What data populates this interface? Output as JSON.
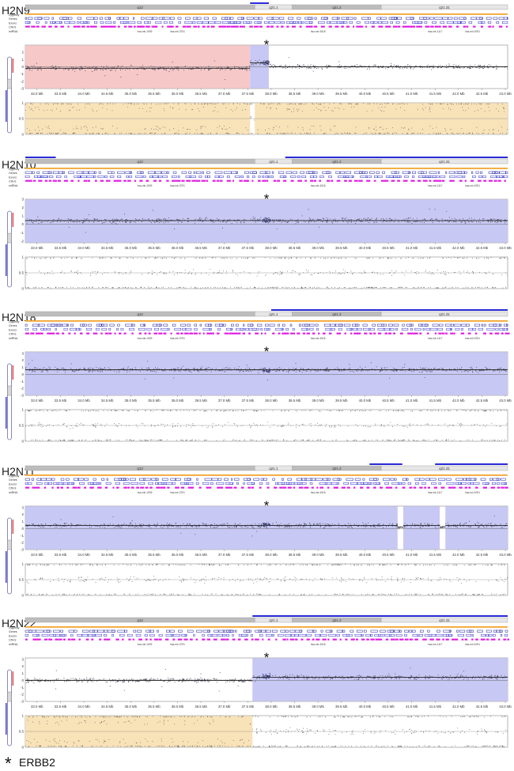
{
  "colors": {
    "gain": "#c8c8f5",
    "loss": "#f6c8c8",
    "loh": "#f8e2b8",
    "cnv": "#e11de1",
    "exon": "#3030c8",
    "gene": "#2020a0",
    "zygosity": "#f3a530",
    "cytoband_dark": "#bdbdbd",
    "cytoband_light": "#e6e6e6",
    "points": "#555566"
  },
  "track_labels": [
    "Zygosity",
    "Genes",
    "Exons",
    "CNVs",
    "miRNA"
  ],
  "cytobands": [
    "q12",
    "q21.1",
    "q21.2",
    "q21.31"
  ],
  "mirna_labels": [
    "hsa-mir-1909",
    "hsa-mir-3791",
    "hsa-mir-4518",
    "hsa-mir-1117",
    "hsa-mir-6781"
  ],
  "chart_data": [
    {
      "type": "scatter",
      "title": "H2N9",
      "x_ticks": [
        "33.0 Mb",
        "33.5 Mb",
        "34.0 Mb",
        "34.5 Mb",
        "35.0 Mb",
        "35.5 Mb",
        "36.0 Mb",
        "36.5 Mb",
        "37.0 Mb",
        "37.5 Mb",
        "38.0 Mb",
        "38.5 Mb",
        "39.0 Mb",
        "39.5 Mb",
        "40.0 Mb",
        "40.5 Mb",
        "41.0 Mb",
        "41.5 Mb",
        "42.0 Mb",
        "42.5 Mb",
        "43.0 Mb"
      ],
      "y_ticks": [
        "2",
        "1",
        "0",
        "-1",
        "-2",
        "-3"
      ],
      "baf_ticks": [
        "1",
        "0.5",
        "0"
      ],
      "xlim": [
        32.75,
        43.05
      ],
      "ylim": [
        -3,
        3
      ],
      "erbb2_mb": 37.9,
      "segments": [
        {
          "start": 32.75,
          "end": 37.55,
          "state": "loss",
          "log2": -0.2,
          "spread": 0.15
        },
        {
          "start": 37.55,
          "end": 37.95,
          "state": "gain",
          "log2": 0.55,
          "spread": 0.2
        },
        {
          "start": 37.95,
          "end": 43.05,
          "state": "none",
          "log2": 0.0,
          "spread": 0.13
        }
      ],
      "loh_regions": [
        [
          32.75,
          37.55
        ],
        [
          37.65,
          43.05
        ]
      ],
      "cytoband_gain_marks": [
        [
          37.55,
          37.95
        ]
      ]
    },
    {
      "type": "scatter",
      "title": "H2N10",
      "x_ticks": [
        "33.0 Mb",
        "33.5 Mb",
        "34.0 Mb",
        "34.5 Mb",
        "35.0 Mb",
        "35.5 Mb",
        "36.0 Mb",
        "36.5 Mb",
        "37.0 Mb",
        "37.5 Mb",
        "38.0 Mb",
        "38.5 Mb",
        "39.0 Mb",
        "39.5 Mb",
        "40.0 Mb",
        "40.5 Mb",
        "41.0 Mb",
        "41.5 Mb",
        "42.0 Mb",
        "42.5 Mb",
        "43.0 Mb"
      ],
      "y_ticks": [
        "3",
        "2",
        "1",
        "0",
        "-1",
        "-2"
      ],
      "baf_ticks": [
        "1",
        "0.5",
        "0"
      ],
      "xlim": [
        32.75,
        43.05
      ],
      "ylim": [
        -2.2,
        3
      ],
      "erbb2_mb": 37.9,
      "segments": [
        {
          "start": 32.75,
          "end": 43.05,
          "state": "gain",
          "log2": 0.45,
          "spread": 0.14
        }
      ],
      "loh_regions": [],
      "cytoband_gain_marks": [
        [
          32.75,
          33.4
        ],
        [
          38.3,
          43.05
        ]
      ]
    },
    {
      "type": "scatter",
      "title": "H2N18",
      "x_ticks": [
        "33.0 Mb",
        "33.5 Mb",
        "34.0 Mb",
        "34.5 Mb",
        "35.0 Mb",
        "35.5 Mb",
        "36.0 Mb",
        "36.5 Mb",
        "37.0 Mb",
        "37.5 Mb",
        "38.0 Mb",
        "38.5 Mb",
        "39.0 Mb",
        "39.5 Mb",
        "40.0 Mb",
        "40.5 Mb",
        "41.0 Mb",
        "41.5 Mb",
        "42.0 Mb",
        "42.5 Mb",
        "43.0 Mb"
      ],
      "y_ticks": [
        "3",
        "2",
        "1",
        "0",
        "-1",
        "-2",
        "-3"
      ],
      "baf_ticks": [
        "1",
        "0.5",
        "0"
      ],
      "xlim": [
        32.75,
        43.05
      ],
      "ylim": [
        -3,
        3.2
      ],
      "erbb2_mb": 37.9,
      "segments": [
        {
          "start": 32.75,
          "end": 43.05,
          "state": "gain",
          "log2": 0.65,
          "spread": 0.16
        }
      ],
      "loh_regions": [],
      "cytoband_gain_marks": [
        [
          38.0,
          43.05
        ]
      ]
    },
    {
      "type": "scatter",
      "title": "H2N11",
      "x_ticks": [
        "33.0 Mb",
        "33.5 Mb",
        "34.0 Mb",
        "34.5 Mb",
        "35.0 Mb",
        "35.5 Mb",
        "36.0 Mb",
        "36.5 Mb",
        "37.0 Mb",
        "37.5 Mb",
        "38.0 Mb",
        "38.5 Mb",
        "39.0 Mb",
        "39.5 Mb",
        "40.0 Mb",
        "40.5 Mb",
        "41.0 Mb",
        "41.5 Mb",
        "42.0 Mb",
        "42.5 Mb",
        "43.0 Mb"
      ],
      "y_ticks": [
        "3",
        "2",
        "1",
        "0",
        "-1",
        "-2",
        "-3"
      ],
      "baf_ticks": [
        "1",
        "0.5",
        "0"
      ],
      "xlim": [
        32.75,
        43.05
      ],
      "ylim": [
        -3,
        3.2
      ],
      "erbb2_mb": 37.9,
      "segments": [
        {
          "start": 32.75,
          "end": 40.7,
          "state": "gain",
          "log2": 0.45,
          "spread": 0.16
        },
        {
          "start": 40.7,
          "end": 40.82,
          "state": "none",
          "log2": 0.2,
          "spread": 0.1
        },
        {
          "start": 40.82,
          "end": 41.6,
          "state": "gain",
          "log2": 0.45,
          "spread": 0.16
        },
        {
          "start": 41.6,
          "end": 41.72,
          "state": "none",
          "log2": 0.2,
          "spread": 0.1
        },
        {
          "start": 41.72,
          "end": 43.05,
          "state": "gain",
          "log2": 0.45,
          "spread": 0.16
        }
      ],
      "loh_regions": [],
      "cytoband_gain_marks": [
        [
          40.1,
          40.8
        ],
        [
          41.5,
          43.05
        ]
      ]
    },
    {
      "type": "scatter",
      "title": "H2N22",
      "x_ticks": [
        "33.0 Mb",
        "33.5 Mb",
        "34.0 Mb",
        "34.5 Mb",
        "35.0 Mb",
        "35.5 Mb",
        "36.0 Mb",
        "36.5 Mb",
        "37.0 Mb",
        "37.5 Mb",
        "38.0 Mb",
        "38.5 Mb",
        "39.0 Mb",
        "39.5 Mb",
        "40.0 Mb",
        "40.5 Mb",
        "41.0 Mb",
        "41.5 Mb",
        "42.0 Mb",
        "42.5 Mb",
        "43.0 Mb"
      ],
      "y_ticks": [
        "3",
        "2",
        "1",
        "0",
        "-1",
        "-2",
        "-3"
      ],
      "baf_ticks": [
        "1",
        "0.5",
        "0"
      ],
      "xlim": [
        32.75,
        43.05
      ],
      "ylim": [
        -3,
        3.2
      ],
      "erbb2_mb": 37.9,
      "segments": [
        {
          "start": 32.75,
          "end": 37.6,
          "state": "none",
          "log2": 0.0,
          "spread": 0.14
        },
        {
          "start": 37.6,
          "end": 43.05,
          "state": "gain",
          "log2": 0.45,
          "spread": 0.15
        }
      ],
      "loh_regions": [
        [
          32.75,
          37.6
        ]
      ],
      "cytoband_gain_marks": [
        [
          37.6,
          43.05
        ]
      ]
    }
  ],
  "legend": {
    "symbol": "*",
    "label": "ERBB2"
  }
}
